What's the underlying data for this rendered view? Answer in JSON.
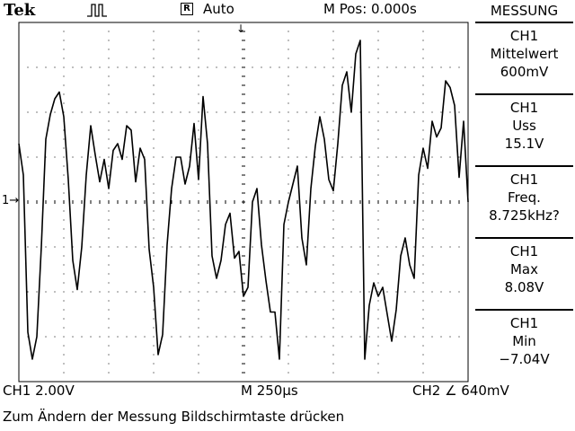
{
  "header": {
    "brand": "Tek",
    "trigger_state_icon": "acquisition-run-icon",
    "trigger_source_icon": "R",
    "trigger_mode": "Auto",
    "m_pos": "M Pos: 0.000s"
  },
  "display": {
    "ch1_marker": "1→",
    "trigger_marker": "↓"
  },
  "menu": {
    "title": "MESSUNG",
    "items": [
      {
        "source": "CH1",
        "type": "Mittelwert",
        "value": "600mV"
      },
      {
        "source": "CH1",
        "type": "Uss",
        "value": "15.1V"
      },
      {
        "source": "CH1",
        "type": "Freq.",
        "value": "8.725kHz?"
      },
      {
        "source": "CH1",
        "type": "Max",
        "value": "8.08V"
      },
      {
        "source": "CH1",
        "type": "Min",
        "value": "−7.04V"
      }
    ]
  },
  "status": {
    "ch1_scale": "CH1  2.00V",
    "timebase": "M 250µs",
    "trigger": "CH2 ∠ 640mV",
    "message": "Zum Ändern der Messung Bildschirmtaste drücken"
  },
  "chart_data": {
    "type": "line",
    "title": "",
    "xlabel": "",
    "ylabel": "",
    "x_divisions": 10,
    "y_divisions": 8,
    "x_unit_per_div": "250µs",
    "y_unit_per_div": "2.00V",
    "xlim": [
      -1.25,
      1.25
    ],
    "ylim": [
      -8,
      8
    ],
    "series": [
      {
        "x": [
          -1.25,
          -1.225,
          -1.2,
          -1.175,
          -1.15,
          -1.125,
          -1.1,
          -1.075,
          -1.05,
          -1.025,
          -1.0,
          -0.975,
          -0.95,
          -0.925,
          -0.9,
          -0.875,
          -0.85,
          -0.825,
          -0.8,
          -0.775,
          -0.75,
          -0.725,
          -0.7,
          -0.675,
          -0.65,
          -0.625,
          -0.6,
          -0.575,
          -0.55,
          -0.525,
          -0.5,
          -0.475,
          -0.45,
          -0.425,
          -0.4,
          -0.375,
          -0.35,
          -0.325,
          -0.3,
          -0.275,
          -0.25,
          -0.225,
          -0.2,
          -0.175,
          -0.15,
          -0.125,
          -0.1,
          -0.075,
          -0.05,
          -0.025,
          0.0,
          0.025,
          0.05,
          0.075,
          0.1,
          0.125,
          0.15,
          0.175,
          0.2,
          0.225,
          0.25,
          0.275,
          0.3,
          0.325,
          0.35,
          0.375,
          0.4,
          0.425,
          0.45,
          0.475,
          0.5,
          0.525,
          0.55,
          0.575,
          0.6,
          0.625,
          0.65,
          0.675,
          0.7,
          0.725,
          0.75,
          0.775,
          0.8,
          0.825,
          0.85,
          0.875,
          0.9,
          0.925,
          0.95,
          0.975,
          1.0,
          1.025,
          1.05,
          1.075,
          1.1,
          1.125,
          1.15,
          1.175,
          1.2,
          1.225,
          1.25
        ],
        "y": [
          2.6,
          1.2,
          -5.8,
          -7.0,
          -6.0,
          -2.0,
          2.8,
          3.9,
          4.6,
          4.9,
          3.8,
          1.0,
          -2.6,
          -3.9,
          -2.0,
          1.2,
          3.4,
          2.1,
          0.9,
          1.9,
          0.6,
          2.3,
          2.6,
          1.9,
          3.4,
          3.2,
          0.9,
          2.4,
          1.9,
          -2.1,
          -3.8,
          -6.8,
          -5.9,
          -1.9,
          0.6,
          2.0,
          2.0,
          0.8,
          1.6,
          3.5,
          1.0,
          4.7,
          2.6,
          -2.4,
          -3.4,
          -2.6,
          -1.0,
          -0.5,
          -2.5,
          -2.2,
          -4.2,
          -3.8,
          0.0,
          0.6,
          -1.9,
          -3.5,
          -4.9,
          -4.9,
          -7.0,
          -1.0,
          0.0,
          0.8,
          1.6,
          -1.6,
          -2.8,
          0.6,
          2.5,
          3.8,
          2.8,
          1.0,
          0.5,
          2.6,
          5.2,
          5.8,
          4.0,
          6.6,
          7.2,
          -7.0,
          -4.6,
          -3.6,
          -4.2,
          -3.8,
          -5.0,
          -6.2,
          -4.8,
          -2.4,
          -1.6,
          -2.8,
          -3.4,
          1.2,
          2.4,
          1.5,
          3.6,
          2.9,
          3.3,
          5.4,
          5.1,
          4.3,
          1.1,
          3.6,
          0.0
        ]
      }
    ],
    "grid": true
  }
}
